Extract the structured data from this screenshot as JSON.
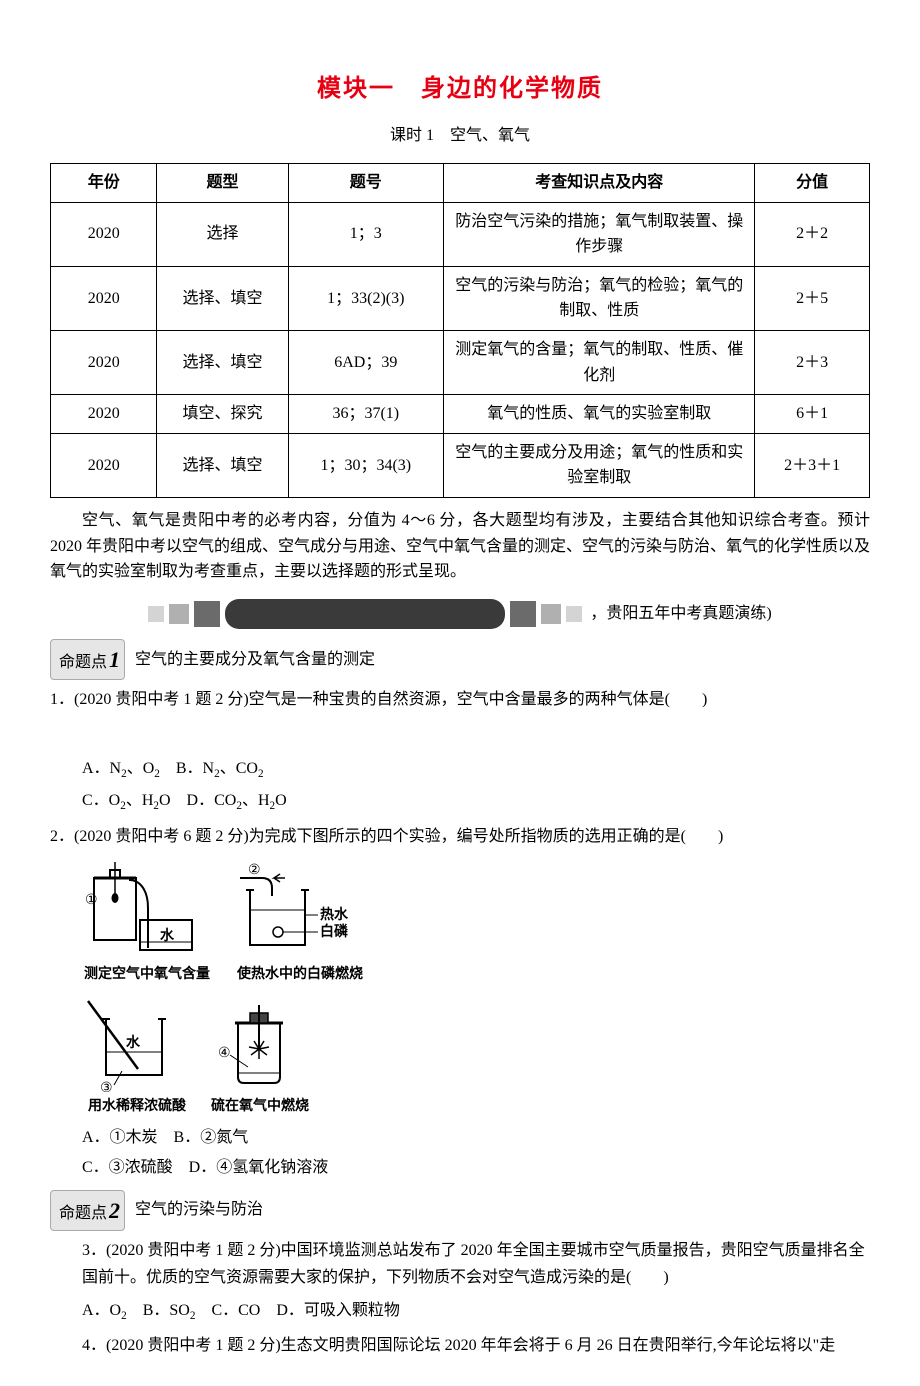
{
  "title": "模块一　身边的化学物质",
  "subtitle": "课时 1　空气、氧气",
  "table": {
    "headers": [
      "年份",
      "题型",
      "题号",
      "考查知识点及内容",
      "分值"
    ],
    "rows": [
      [
        "2020",
        "选择",
        "1；3",
        "防治空气污染的措施；氧气制取装置、操作步骤",
        "2＋2"
      ],
      [
        "2020",
        "选择、填空",
        "1；33(2)(3)",
        "空气的污染与防治；氧气的检验；氧气的制取、性质",
        "2＋5"
      ],
      [
        "2020",
        "选择、填空",
        "6AD；39",
        "测定氧气的含量；氧气的制取、性质、催化剂",
        "2＋3"
      ],
      [
        "2020",
        "填空、探究",
        "36；37(1)",
        "氧气的性质、氧气的实验室制取",
        "6＋1"
      ],
      [
        "2020",
        "选择、填空",
        "1；30；34(3)",
        "空气的主要成分及用途；氧气的性质和实验室制取",
        "2＋3＋1"
      ]
    ]
  },
  "intro": "空气、氧气是贵阳中考的必考内容，分值为 4～6 分，各大题型均有涉及，主要结合其他知识综合考查。预计 2020 年贵阳中考以空气的组成、空气成分与用途、空气中氧气含量的测定、空气的污染与防治、氧气的化学性质以及氧气的实验室制取为考查重点，主要以选择题的形式呈现。",
  "section_label": "，贵阳五年中考真题演练)",
  "topic1": {
    "tag_prefix": "命题点",
    "tag_num": "1",
    "title": "空气的主要成分及氧气含量的测定"
  },
  "q1": {
    "text": "1．(2020 贵阳中考 1 题 2 分)空气是一种宝贵的自然资源，空气中含量最多的两种气体是(　　)",
    "optA_pre": "A．N",
    "optA_sub1": "2",
    "optA_mid": "、O",
    "optA_sub2": "2",
    "optB_pre": "　B．N",
    "optB_sub1": "2",
    "optB_mid": "、CO",
    "optB_sub2": "2",
    "optC_pre": "C．O",
    "optC_sub1": "2",
    "optC_mid": "、H",
    "optC_sub2": "2",
    "optC_tail": "O",
    "optD_pre": "　D．CO",
    "optD_sub1": "2",
    "optD_mid": "、H",
    "optD_sub2": "2",
    "optD_tail": "O"
  },
  "q2": {
    "text": "2．(2020 贵阳中考 6 题 2 分)为完成下图所示的四个实验，编号处所指物质的选用正确的是(　　)",
    "fig1_caption": "测定空气中氧气含量",
    "fig1_label_water": "水",
    "fig1_label_num": "①",
    "fig2_caption": "使热水中的白磷燃烧",
    "fig2_label_num": "②",
    "fig2_label_hot": "热水",
    "fig2_label_p": "白磷",
    "fig3_caption": "用水稀释浓硫酸",
    "fig3_label_water": "水",
    "fig3_label_num": "③",
    "fig4_caption": "硫在氧气中燃烧",
    "fig4_label_num": "④",
    "opt_line1": "A．①木炭　B．②氮气",
    "opt_line2": "C．③浓硫酸　D．④氢氧化钠溶液"
  },
  "topic2": {
    "tag_prefix": "命题点",
    "tag_num": "2",
    "title": "空气的污染与防治"
  },
  "q3": {
    "text": "3．(2020 贵阳中考 1 题 2 分)中国环境监测总站发布了 2020 年全国主要城市空气质量报告，贵阳空气质量排名全国前十。优质的空气资源需要大家的保护，下列物质不会对空气造成污染的是(　　)",
    "optA_pre": "A．O",
    "optA_sub": "2",
    "optB_pre": "　B．SO",
    "optB_sub": "2",
    "optC": "　C．CO",
    "optD": "　D．可吸入颗粒物"
  },
  "q4": {
    "text": "4．(2020 贵阳中考 1 题 2 分)生态文明贵阳国际论坛 2020 年年会将于 6 月 26 日在贵阳举行,今年论坛将以\"走"
  }
}
